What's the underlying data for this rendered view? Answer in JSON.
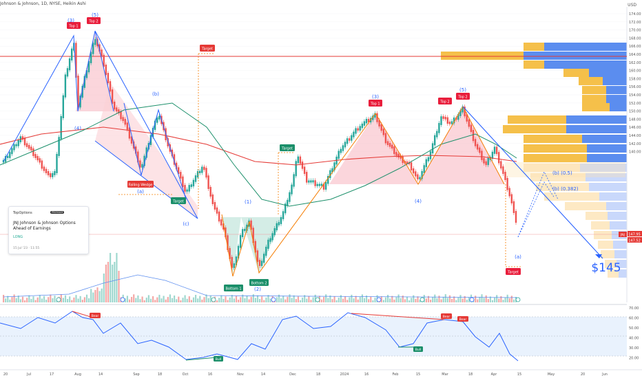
{
  "header": {
    "title": "Johnson & Johnson, 1D, NYSE, Heikin Ashi",
    "currency": "USD"
  },
  "idea_card": {
    "brand": "TopOptions",
    "badge": "PREMIUM",
    "title": "JNJ Johnson & Johnson Options Ahead of Earnings",
    "direction": "LONG",
    "date": "15 Jul '23 · 11:55"
  },
  "price_axis": {
    "labels": [
      "174.00",
      "172.00",
      "170.00",
      "168.00",
      "166.00",
      "164.00",
      "162.00",
      "160.00",
      "158.00",
      "156.00",
      "154.00",
      "152.00",
      "150.00",
      "148.00",
      "146.00",
      "144.00",
      "142.00",
      "140.00"
    ],
    "price_tag_symbol": "JNJ",
    "price_tag_1": "147.95",
    "price_tag_2": "147.52"
  },
  "rsi_axis": {
    "labels": [
      "70.00",
      "60.00",
      "50.00",
      "40.00",
      "30.00",
      "20.00"
    ]
  },
  "time_axis": {
    "labels": [
      "20",
      "Jul",
      "17",
      "Aug",
      "14",
      "Sep",
      "18",
      "Oct",
      "16",
      "Nov",
      "14",
      "Dec",
      "18",
      "2024",
      "16",
      "Feb",
      "15",
      "Mar",
      "18",
      "Apr",
      "15",
      "May",
      "20",
      "Jun"
    ]
  },
  "annotations": {
    "top1_left": "Top 1",
    "top2_left": "Top 2",
    "target_upper": "Target",
    "falling_wedge": "Falling Wedge",
    "target_wedge": "Target",
    "bottom1": "Bottom 1",
    "bottom2": "Bottom 2",
    "target_dec": "Target",
    "top1_right": "Top 1",
    "top2_right": "Top 2",
    "top2_right_b": "Top 2",
    "target_lower": "Target",
    "wave_3_left": "(3)",
    "wave_5_left": "(5)",
    "wave_4_left": "(4)",
    "wave_b_left": "(b)",
    "wave_a_left": "(a)",
    "wave_c_left": "(c)",
    "wave_1_mid": "(1)",
    "wave_2_mid": "(2)",
    "wave_3_right": "(3)",
    "wave_4_right": "(4)",
    "wave_5_right": "(5)",
    "wave_a_right": "(a)",
    "fib_b_05": "(b) (0.5)",
    "fib_b_0382": "(b) (0.382)",
    "price_target": "$145"
  },
  "rsi_labels": {
    "bear1": "Bear",
    "bull1": "Bull",
    "bull2": "Bull",
    "bear2": "Bear",
    "bear3": "Bear"
  },
  "colors": {
    "bull": "#26a69a",
    "bear": "#ef5350",
    "blue": "#2962ff",
    "orange": "#f57c00",
    "rsi_line": "#2962ff",
    "vp_up": "#f5c04a",
    "vp_down": "#5b8def"
  }
}
